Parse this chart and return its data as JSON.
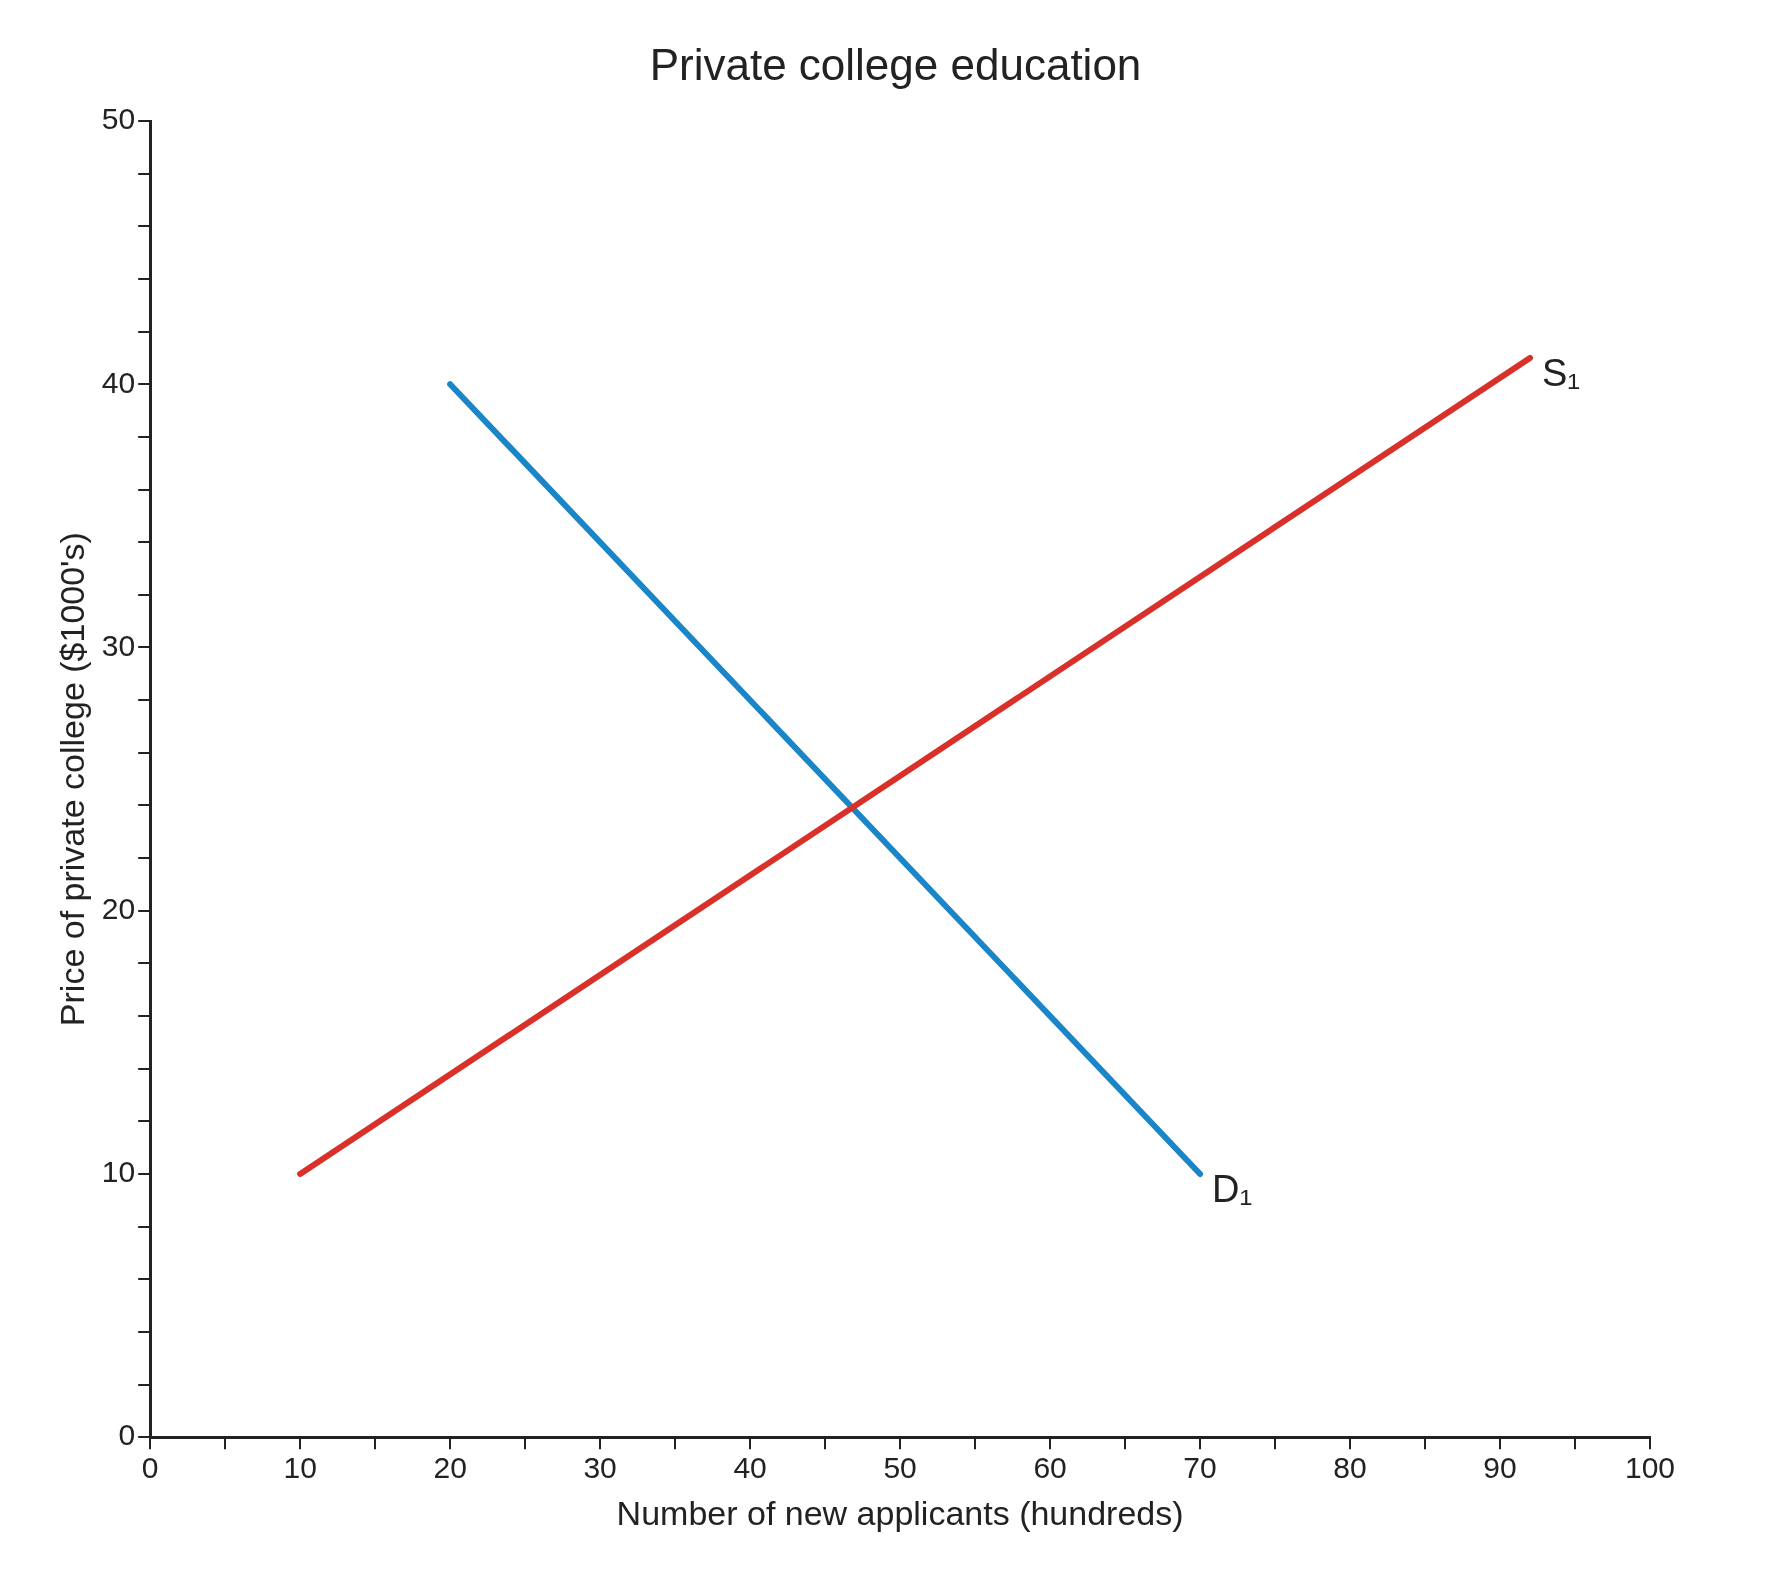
{
  "chart_data": {
    "type": "line",
    "title": "Private college education",
    "xlabel": "Number of new applicants (hundreds)",
    "ylabel": "Price of private college ($1000's)",
    "xlim": [
      0,
      100
    ],
    "xticks": [
      0,
      {
        "value": 5,
        "label": null
      },
      10,
      {
        "value": 15,
        "label": null
      },
      20,
      {
        "value": 25,
        "label": null
      },
      30,
      {
        "value": 35,
        "label": null
      },
      40,
      {
        "value": 45,
        "label": null
      },
      50,
      {
        "value": 55,
        "label": null
      },
      60,
      {
        "value": 65,
        "label": null
      },
      70,
      {
        "value": 75,
        "label": null
      },
      80,
      {
        "value": 85,
        "label": null
      },
      90,
      {
        "value": 95,
        "label": null
      },
      100
    ],
    "ylim": [
      0,
      50
    ],
    "yticks": [
      0,
      {
        "value": 2,
        "label": null
      },
      {
        "value": 4,
        "label": null
      },
      {
        "value": 6,
        "label": null
      },
      {
        "value": 8,
        "label": null
      },
      10,
      {
        "value": 12,
        "label": null
      },
      {
        "value": 14,
        "label": null
      },
      {
        "value": 16,
        "label": null
      },
      {
        "value": 18,
        "label": null
      },
      20,
      {
        "value": 22,
        "label": null
      },
      {
        "value": 24,
        "label": null
      },
      {
        "value": 26,
        "label": null
      },
      {
        "value": 28,
        "label": null
      },
      30,
      {
        "value": 32,
        "label": null
      },
      {
        "value": 34,
        "label": null
      },
      {
        "value": 36,
        "label": null
      },
      {
        "value": 38,
        "label": null
      },
      40,
      {
        "value": 42,
        "label": null
      },
      {
        "value": 44,
        "label": null
      },
      {
        "value": 46,
        "label": null
      },
      {
        "value": 48,
        "label": null
      },
      50
    ],
    "grid": false,
    "legend": false,
    "marker": "none",
    "line_style": "solid",
    "series": [
      {
        "name": "S₁",
        "color": "#d9302a",
        "x": [
          10,
          92
        ],
        "values": [
          10,
          41
        ]
      },
      {
        "name": "D₁",
        "color": "#1a86c8",
        "x": [
          20,
          70
        ],
        "values": [
          40,
          10
        ]
      }
    ]
  }
}
